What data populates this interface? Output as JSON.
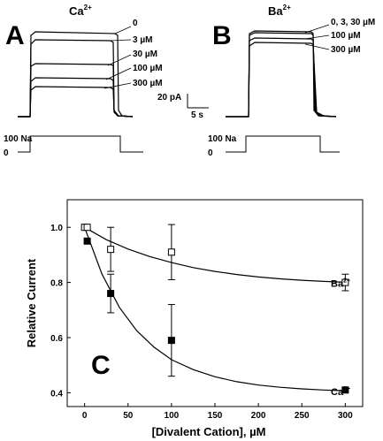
{
  "panel_a": {
    "letter": "A",
    "ion": "Ca",
    "ion_sup": "2+",
    "trace_labels": [
      "0",
      "3 µM",
      "30 µM",
      "100 µM",
      "300 µM"
    ],
    "scale_current": "20 pA",
    "scale_time": "5 s",
    "protocol_high": "100 Na",
    "protocol_low": "0"
  },
  "panel_b": {
    "letter": "B",
    "ion": "Ba",
    "ion_sup": "2+",
    "trace_labels": [
      "0, 3, 30 µM",
      "100 µM",
      "300 µM"
    ],
    "protocol_high": "100 Na",
    "protocol_low": "0"
  },
  "chart_data": {
    "type": "scatter",
    "panel_letter": "C",
    "xlabel": "[Divalent Cation], µM",
    "ylabel": "Relative Current",
    "xlim": [
      -20,
      320
    ],
    "ylim": [
      0.35,
      1.1
    ],
    "xticks": [
      0,
      50,
      100,
      150,
      200,
      250,
      300
    ],
    "yticks": [
      0.4,
      0.6,
      0.8,
      1.0
    ],
    "series": [
      {
        "name": "Ba",
        "name_sup": "2+",
        "marker": "open-square",
        "x": [
          0,
          3,
          30,
          100,
          300
        ],
        "y": [
          1.0,
          1.0,
          0.92,
          0.91,
          0.8
        ],
        "err": [
          0,
          0,
          0.08,
          0.1,
          0.03
        ],
        "fit_x": [
          0,
          25,
          50,
          75,
          100,
          125,
          150,
          175,
          200,
          225,
          250,
          275,
          300
        ],
        "fit_y": [
          1.0,
          0.955,
          0.921,
          0.894,
          0.872,
          0.854,
          0.84,
          0.829,
          0.82,
          0.813,
          0.808,
          0.804,
          0.801
        ]
      },
      {
        "name": "Ca",
        "name_sup": "2+",
        "marker": "filled-square",
        "x": [
          3,
          30,
          100,
          300
        ],
        "y": [
          0.95,
          0.76,
          0.59,
          0.41
        ],
        "err": [
          0,
          0.07,
          0.13,
          0
        ],
        "fit_x": [
          0,
          20,
          40,
          60,
          80,
          100,
          125,
          150,
          175,
          200,
          225,
          250,
          275,
          300
        ],
        "fit_y": [
          1.0,
          0.83,
          0.71,
          0.625,
          0.565,
          0.52,
          0.484,
          0.458,
          0.44,
          0.428,
          0.42,
          0.414,
          0.41,
          0.407
        ]
      }
    ]
  }
}
